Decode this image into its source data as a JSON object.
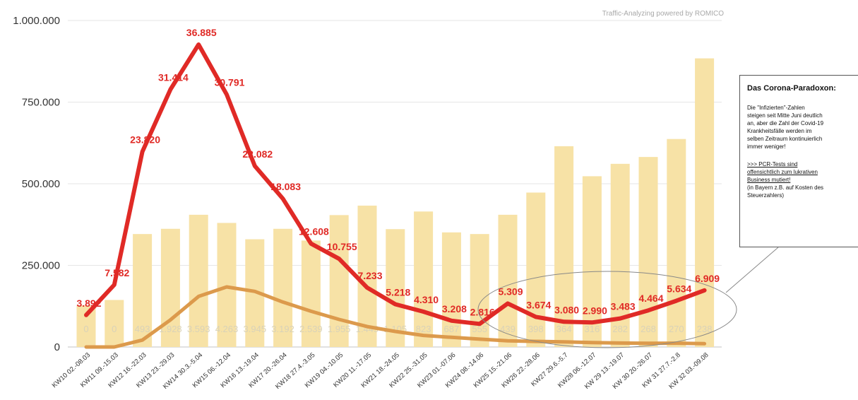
{
  "chart_data": {
    "type": "bar",
    "credit": "Traffic-Analyzing powered by ROMICO",
    "categories": [
      "KW10 02.-08.03",
      "KW11 09.-15.03",
      "KW12 16.-22.03",
      "KW13 23.-29.03",
      "KW14 30.3.-5.04",
      "KW15 06.-12.04",
      "KW16 13.-19.04",
      "KW17 20.-26.04",
      "KW18 27.4.-3.05",
      "KW19 04.-10.05",
      "KW20 11.-17.05",
      "KW21 18.-24.05",
      "KW22 25.-31.05",
      "KW23 01.-07.06",
      "KW24 08.-14.06",
      "KW25 15.-21.06",
      "KW26 22.-28.06",
      "KW27 29.6.-5.7",
      "KW28 06.-12.07",
      "KW 29 13.-19.07",
      "KW 30 20.-26.07",
      "KW 31 27.7.-2.8",
      "KW 32 03.-09.08"
    ],
    "ylim": [
      0,
      1000000
    ],
    "yticks": [
      0,
      250000,
      500000,
      750000,
      1000000
    ],
    "ytick_labels": [
      "0",
      "250.000",
      "500.000",
      "750.000",
      "1.000.000"
    ],
    "grid": true,
    "legend": "none",
    "series": [
      {
        "kind": "bar",
        "color": "#f7e2a6",
        "values": [
          127000,
          144000,
          346000,
          362000,
          405000,
          380000,
          330000,
          362000,
          326000,
          404000,
          433000,
          361000,
          415000,
          351000,
          346000,
          405000,
          473000,
          615000,
          523000,
          561000,
          582000,
          637000,
          884000
        ]
      },
      {
        "kind": "line",
        "color": "#e02a26",
        "values": [
          3892,
          7582,
          23820,
          31414,
          36885,
          30791,
          22082,
          18083,
          12608,
          10755,
          7233,
          5218,
          4310,
          3208,
          2816,
          5309,
          3674,
          3080,
          2990,
          3483,
          4464,
          5634,
          6909
        ],
        "labels": [
          "3.892",
          "7.582",
          "23.820",
          "31.414",
          "36.885",
          "30.791",
          "22.082",
          "18.083",
          "12.608",
          "10.755",
          "7.233",
          "5.218",
          "4.310",
          "3.208",
          "2.816",
          "5.309",
          "3.674",
          "3.080",
          "2.990",
          "3.483",
          "4.464",
          "5.634",
          "6.909"
        ]
      },
      {
        "kind": "line",
        "color": "#dc9a4c",
        "values": [
          0,
          0,
          493,
          1928,
          3593,
          4263,
          3945,
          3192,
          2539,
          1955,
          1449,
          1105,
          823,
          687,
          555,
          439,
          398,
          364,
          316,
          282,
          268,
          270,
          238
        ],
        "labels": [
          "0",
          "0",
          "493",
          "1.928",
          "3.593",
          "4.263",
          "3.945",
          "3.192",
          "2.539",
          "1.955",
          "1.449",
          "1.105",
          "823",
          "687",
          "555",
          "439",
          "398",
          "364",
          "316",
          "282",
          "268",
          "270",
          "238"
        ]
      }
    ]
  },
  "note": {
    "title": "Das Corona-Paradoxon:",
    "body": "Die \"Infizierten\"-Zahlen\nsteigen seit Mitte Juni deutlich\nan, aber die Zahl der Covid-19\nKrankheitsfälle werden im\nselben Zeitraum kontinuierlich\nimmer weniger!",
    "link": ">>> PCR-Tests sind\noffensichtlich zum lukrativen\nBusiness mutiert!",
    "sub": "(in Bayern z.B. auf Kosten des\nSteuerzahlers)"
  },
  "colors": {
    "bar": "#f7e2a6",
    "red_line": "#e02a26",
    "orange_line": "#dc9a4c",
    "grid": "#e6e6e6",
    "ellipse": "#888888"
  }
}
